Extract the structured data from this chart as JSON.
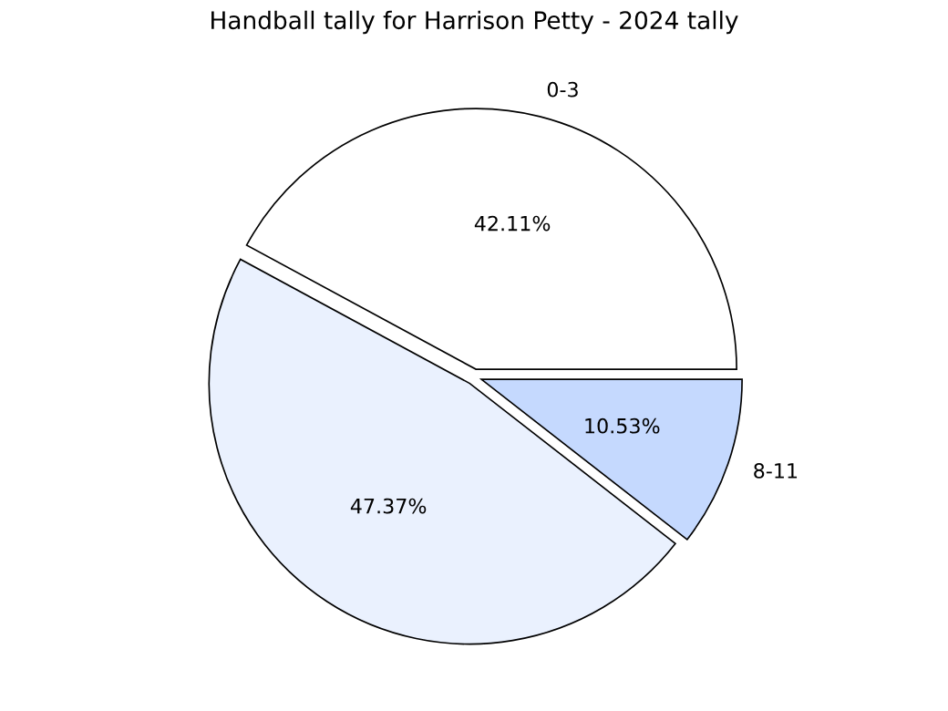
{
  "chart_data": {
    "type": "pie",
    "title": "Handball tally for Harrison Petty - 2024 tally",
    "categories": [
      "0-3",
      null,
      "8-11"
    ],
    "values": [
      42.11,
      47.37,
      10.53
    ],
    "value_labels": [
      "42.11%",
      "47.37%",
      "10.53%"
    ],
    "colors": [
      "#ffffff",
      "#eaf1fe",
      "#c5d9fe"
    ],
    "legend": false
  }
}
